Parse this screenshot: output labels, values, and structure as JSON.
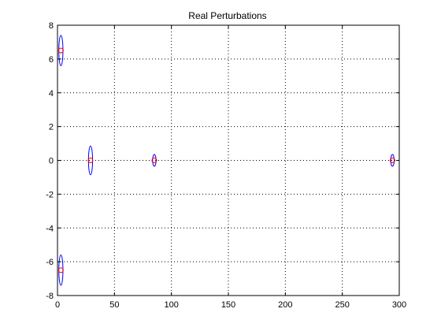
{
  "chart_data": {
    "type": "scatter",
    "title": "Real Perturbations",
    "xlabel": "",
    "ylabel": "",
    "xlim": [
      0,
      300
    ],
    "ylim": [
      -8,
      8
    ],
    "xticks": [
      0,
      50,
      100,
      150,
      200,
      250,
      300
    ],
    "yticks": [
      -8,
      -6,
      -4,
      -2,
      0,
      2,
      4,
      6,
      8
    ],
    "grid": true,
    "grid_style": "dotted",
    "colors": {
      "ellipse": "#0000ff",
      "eigenvalue_marker": "#ff0000",
      "axes": "#000000",
      "grid": "#000000"
    },
    "points": [
      {
        "x": 3,
        "y": 6.5,
        "dx": 1.8,
        "dy": 0.9
      },
      {
        "x": 3,
        "y": -6.5,
        "dx": 1.8,
        "dy": 0.9
      },
      {
        "x": 29,
        "y": 0,
        "dx": 1.8,
        "dy": 0.85
      },
      {
        "x": 85,
        "y": 0,
        "dx": 1.5,
        "dy": 0.35
      },
      {
        "x": 294,
        "y": 0,
        "dx": 1.5,
        "dy": 0.35
      }
    ]
  }
}
